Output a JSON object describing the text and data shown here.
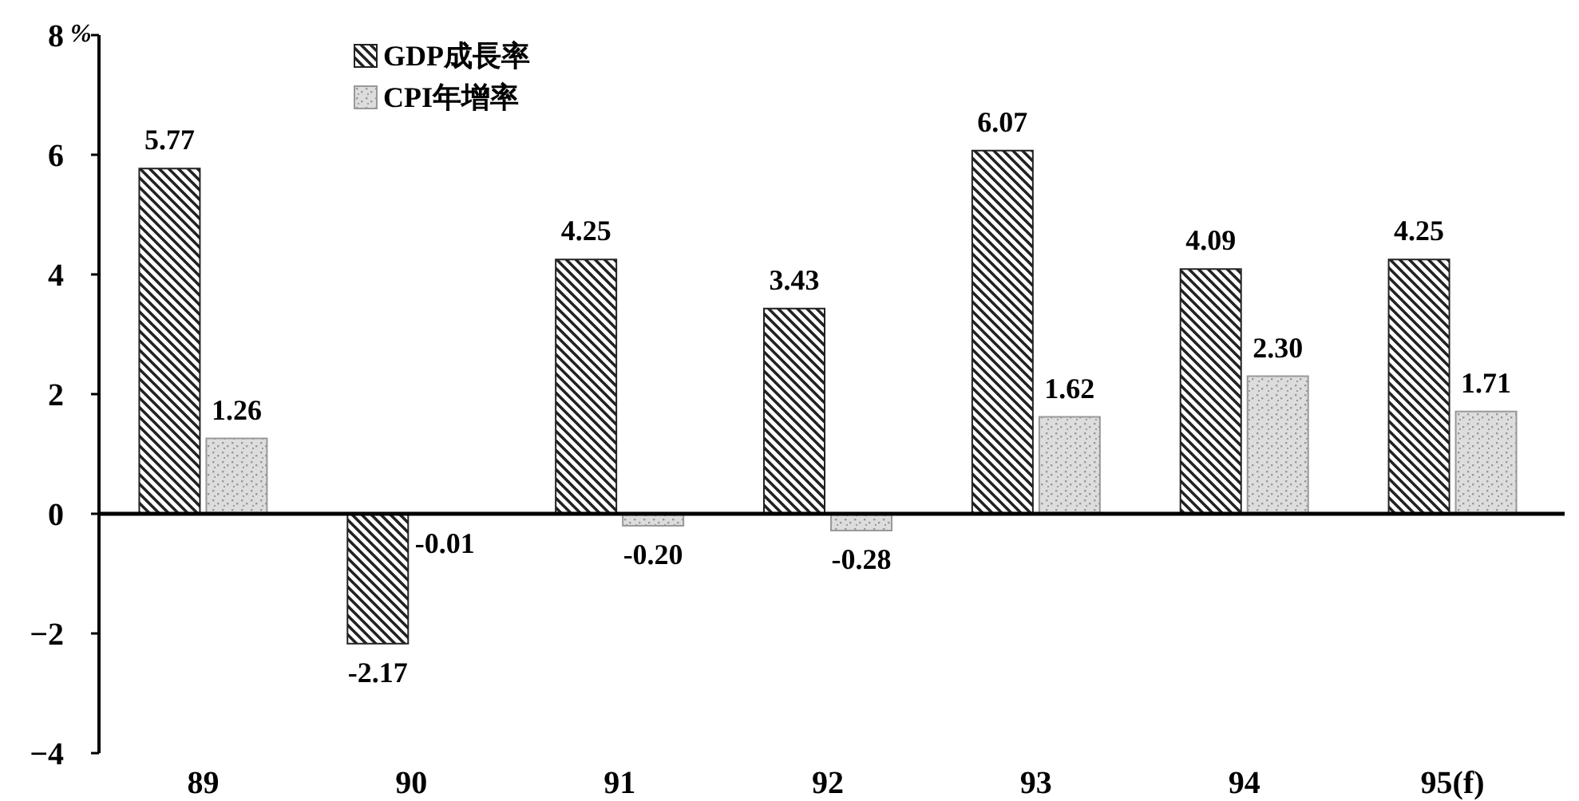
{
  "chart_data": {
    "type": "bar",
    "ylabel": "%",
    "categories": [
      "89",
      "90",
      "91",
      "92",
      "93",
      "94",
      "95(f)"
    ],
    "series": [
      {
        "name": "GDP成長率",
        "color": "#222222",
        "values": [
          5.77,
          -2.17,
          4.25,
          3.43,
          6.07,
          4.09,
          4.25
        ],
        "value_labels": [
          "5.77",
          "-2.17",
          "4.25",
          "3.43",
          "6.07",
          "4.09",
          "4.25"
        ]
      },
      {
        "name": "CPI年增率",
        "color": "#999999",
        "values": [
          1.26,
          -0.01,
          -0.2,
          -0.28,
          1.62,
          2.3,
          1.71
        ],
        "value_labels": [
          "1.26",
          "-0.01",
          "-0.20",
          "-0.28",
          "1.62",
          "2.30",
          "1.71"
        ]
      }
    ],
    "ylim": [
      -4,
      8
    ],
    "yticks": [
      -4,
      -2,
      0,
      2,
      4,
      6,
      8
    ],
    "legend": "top left"
  }
}
